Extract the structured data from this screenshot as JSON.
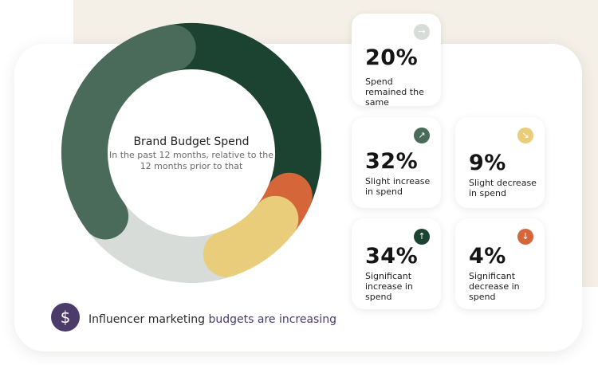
{
  "chart_data": {
    "type": "pie",
    "title": "Brand Budget Spend",
    "subtitle": "In the past 12 months, relative to the 12 months prior to that",
    "categories": [
      "Spend remained the same",
      "Slight increase in spend",
      "Slight decrease in spend",
      "Significant increase in spend",
      "Significant decrease in spend"
    ],
    "values": [
      20,
      32,
      9,
      34,
      4
    ],
    "unit": "%"
  },
  "colors": {
    "significant_increase": "#1c4331",
    "slight_increase": "#4a6a5a",
    "same": "#d7dcd8",
    "slight_decrease": "#e9cd7a",
    "significant_decrease": "#d5663a",
    "accent_purple": "#4a3b6b",
    "background_band": "#f4efe7"
  },
  "cards": [
    {
      "id": "same",
      "value": "20%",
      "label": "Spend remained the same",
      "icon": "arrow-right-icon",
      "glyph": "→",
      "color": "#d7dcd8"
    },
    {
      "id": "slight-increase",
      "value": "32%",
      "label": "Slight increase in spend",
      "icon": "arrow-up-right-icon",
      "glyph": "↗",
      "color": "#4a6a5a"
    },
    {
      "id": "slight-decrease",
      "value": "9%",
      "label": "Slight decrease in spend",
      "icon": "arrow-down-right-icon",
      "glyph": "↘",
      "color": "#e9cd7a"
    },
    {
      "id": "significant-increase",
      "value": "34%",
      "label": "Significant increase in spend",
      "icon": "arrow-up-icon",
      "glyph": "↑",
      "color": "#1c4331"
    },
    {
      "id": "significant-decrease",
      "value": "4%",
      "label": "Significant decrease in spend",
      "icon": "arrow-down-icon",
      "glyph": "↓",
      "color": "#d5663a"
    }
  ],
  "footer": {
    "icon": "dollar-icon",
    "icon_glyph": "$",
    "text_plain": "Influencer marketing",
    "text_accent": "budgets are increasing"
  }
}
